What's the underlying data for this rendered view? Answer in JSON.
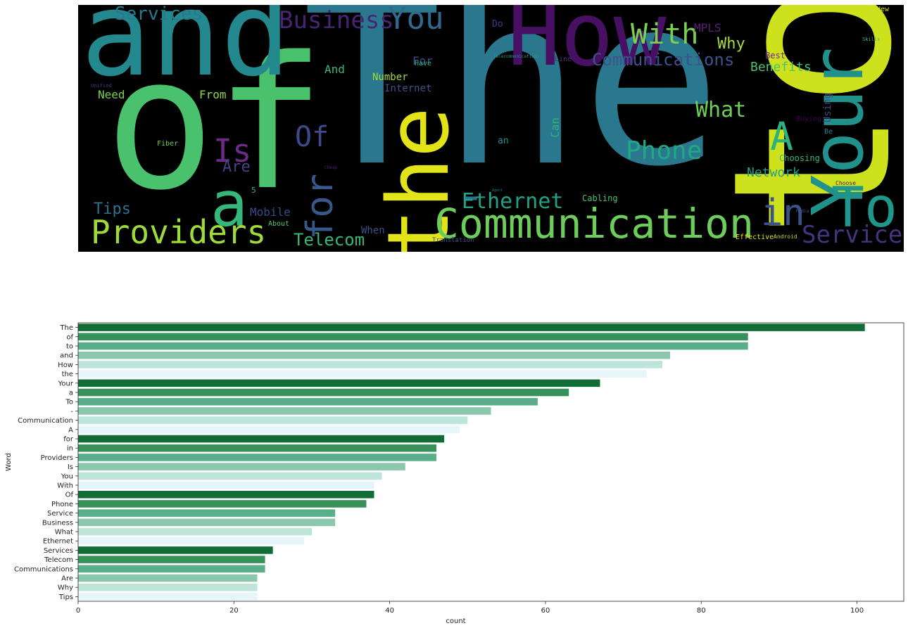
{
  "chart_data": [
    {
      "type": "wordcloud",
      "words": [
        {
          "text": "The",
          "color": "#2a788e"
        },
        {
          "text": "to",
          "color": "#cde11d"
        },
        {
          "text": "of",
          "color": "#4ac16d"
        },
        {
          "text": "and",
          "color": "#23898e"
        },
        {
          "text": "How",
          "color": "#471063"
        },
        {
          "text": "the",
          "color": "#e3e418"
        },
        {
          "text": "Your",
          "color": "#21918c"
        },
        {
          "text": "a",
          "color": "#35b779"
        },
        {
          "text": "To",
          "color": "#1f978b"
        },
        {
          "text": "-",
          "color": "#2c728e"
        },
        {
          "text": "Communication",
          "color": "#6ccd5a"
        },
        {
          "text": "A",
          "color": "#2db27d"
        },
        {
          "text": "for",
          "color": "#38588c"
        },
        {
          "text": "in",
          "color": "#3b528b"
        },
        {
          "text": "Providers",
          "color": "#a0da39"
        },
        {
          "text": "Is",
          "color": "#6c2b87"
        },
        {
          "text": "You",
          "color": "#31688e"
        },
        {
          "text": "With",
          "color": "#7ad151"
        },
        {
          "text": "Of",
          "color": "#3e4989"
        },
        {
          "text": "Phone",
          "color": "#22a785"
        },
        {
          "text": "Service",
          "color": "#46337e"
        },
        {
          "text": "Business",
          "color": "#482475"
        },
        {
          "text": "What",
          "color": "#6ece58"
        },
        {
          "text": "Ethernet",
          "color": "#1fa187"
        },
        {
          "text": "Services",
          "color": "#29798e"
        },
        {
          "text": "Telecom",
          "color": "#35b779"
        },
        {
          "text": "Communications",
          "color": "#3b528b"
        },
        {
          "text": "Are",
          "color": "#414487"
        },
        {
          "text": "Why",
          "color": "#a5db36"
        },
        {
          "text": "Tips",
          "color": "#2c728e"
        },
        {
          "text": "Benefits",
          "color": "#4ac16d"
        },
        {
          "text": "Network",
          "color": "#1f9e89"
        },
        {
          "text": "Mobile",
          "color": "#3e4989"
        },
        {
          "text": "MPLS",
          "color": "#5b1e78"
        },
        {
          "text": "Need",
          "color": "#7ad151"
        },
        {
          "text": "From",
          "color": "#8fd744"
        },
        {
          "text": "And",
          "color": "#35b779"
        },
        {
          "text": "For",
          "color": "#3e4989"
        },
        {
          "text": "Internet",
          "color": "#3b528b"
        },
        {
          "text": "Number",
          "color": "#a0da39"
        },
        {
          "text": "When",
          "color": "#3b528b"
        },
        {
          "text": "Using",
          "color": "#414487"
        },
        {
          "text": "Can",
          "color": "#2db27d"
        },
        {
          "text": "Cabling",
          "color": "#4ac16d"
        },
        {
          "text": "Choosing",
          "color": "#35b779"
        },
        {
          "text": "Buying",
          "color": "#440154"
        },
        {
          "text": "Best",
          "color": "#6c2b87"
        },
        {
          "text": "Be",
          "color": "#26828e"
        },
        {
          "text": "Fiber",
          "color": "#6ece58"
        },
        {
          "text": "About",
          "color": "#5ec962"
        },
        {
          "text": "Have",
          "color": "#2db27d"
        },
        {
          "text": "Line",
          "color": "#46337e"
        },
        {
          "text": "Do",
          "color": "#443983"
        },
        {
          "text": "an",
          "color": "#21918c"
        },
        {
          "text": "5",
          "color": "#35b779"
        },
        {
          "text": "Effective",
          "color": "#e3e418"
        },
        {
          "text": "Translation",
          "color": "#3b528b"
        },
        {
          "text": "Android",
          "color": "#bddf26"
        },
        {
          "text": "New",
          "color": "#cde11d"
        },
        {
          "text": "Choose",
          "color": "#471063"
        },
        {
          "text": "Telecommunications",
          "color": "#1f9e89"
        },
        {
          "text": "Media",
          "color": "#3b528b"
        },
        {
          "text": "Cheap",
          "color": "#482475"
        },
        {
          "text": "Unified",
          "color": "#443983"
        },
        {
          "text": "Skills",
          "color": "#35b779"
        },
        {
          "text": "Agent",
          "color": "#2c728e"
        }
      ]
    },
    {
      "type": "bar",
      "orientation": "horizontal",
      "xlabel": "count",
      "ylabel": "Word",
      "xlim": [
        0,
        106
      ],
      "xticks": [
        0,
        20,
        40,
        60,
        80,
        100
      ],
      "grid": false,
      "palette": [
        "#116c36",
        "#37915a",
        "#5aae8a",
        "#8ac7ad",
        "#bde5da",
        "#e5f5f9"
      ],
      "categories": [
        "The",
        "of",
        "to",
        "and",
        "How",
        "the",
        "Your",
        "a",
        "To",
        "-",
        "Communication",
        "A",
        "for",
        "in",
        "Providers",
        "Is",
        "You",
        "With",
        "Of",
        "Phone",
        "Service",
        "Business",
        "What",
        "Ethernet",
        "Services",
        "Telecom",
        "Communications",
        "Are",
        "Why",
        "Tips"
      ],
      "values": [
        101,
        86,
        86,
        76,
        75,
        73,
        67,
        63,
        59,
        53,
        50,
        49,
        47,
        46,
        46,
        42,
        39,
        38,
        38,
        37,
        33,
        33,
        30,
        29,
        25,
        24,
        24,
        23,
        23,
        23
      ]
    }
  ]
}
